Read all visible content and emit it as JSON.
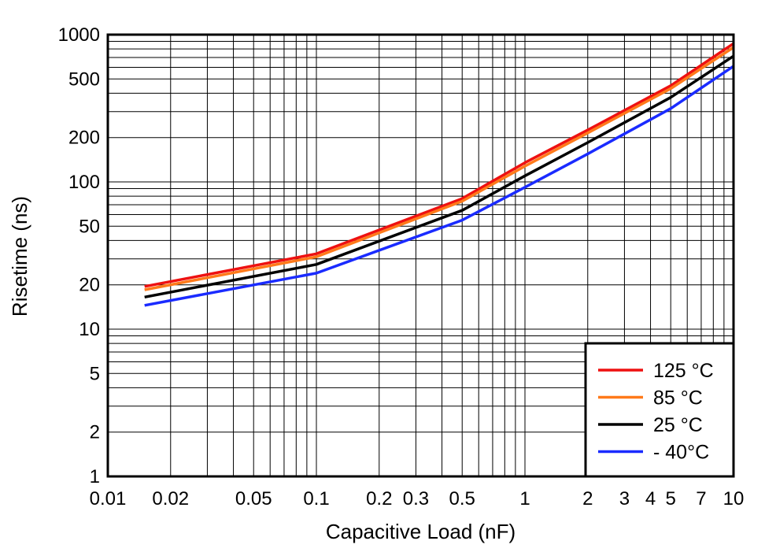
{
  "chart_data": {
    "type": "line",
    "xlabel": "Capacitive Load (nF)",
    "ylabel": "Risetime (ns)",
    "x_scale": "log",
    "y_scale": "log",
    "xlim": [
      0.01,
      10
    ],
    "ylim": [
      1,
      1000
    ],
    "grid": true,
    "legend_position": "bottom-right",
    "x_ticks": [
      {
        "value": 0.01,
        "label": "0.01"
      },
      {
        "value": 0.02,
        "label": "0.02"
      },
      {
        "value": 0.05,
        "label": "0.05"
      },
      {
        "value": 0.1,
        "label": "0.1"
      },
      {
        "value": 0.2,
        "label": "0.2"
      },
      {
        "value": 0.3,
        "label": "0.3"
      },
      {
        "value": 0.5,
        "label": "0.5"
      },
      {
        "value": 1,
        "label": "1"
      },
      {
        "value": 2,
        "label": "2"
      },
      {
        "value": 3,
        "label": "3"
      },
      {
        "value": 4,
        "label": "4"
      },
      {
        "value": 5,
        "label": "5"
      },
      {
        "value": 7,
        "label": "7"
      },
      {
        "value": 10,
        "label": "10"
      }
    ],
    "y_ticks": [
      {
        "value": 1,
        "label": "1"
      },
      {
        "value": 2,
        "label": "2"
      },
      {
        "value": 5,
        "label": "5"
      },
      {
        "value": 10,
        "label": "10"
      },
      {
        "value": 20,
        "label": "20"
      },
      {
        "value": 50,
        "label": "50"
      },
      {
        "value": 100,
        "label": "100"
      },
      {
        "value": 200,
        "label": "200"
      },
      {
        "value": 500,
        "label": "500"
      },
      {
        "value": 1000,
        "label": "1000"
      }
    ],
    "series": [
      {
        "name": "125 °C",
        "color": "#ee1111",
        "x": [
          0.015,
          0.1,
          0.5,
          1,
          2,
          5,
          10
        ],
        "y": [
          19.5,
          32.5,
          77,
          135,
          225,
          450,
          870
        ]
      },
      {
        "name": "85 °C",
        "color": "#ff7a1a",
        "x": [
          0.015,
          0.1,
          0.5,
          1,
          2,
          5,
          10
        ],
        "y": [
          18.5,
          31,
          74,
          128,
          215,
          430,
          820
        ]
      },
      {
        "name": "25 °C",
        "color": "#000000",
        "x": [
          0.015,
          0.1,
          0.5,
          1,
          2,
          5,
          10
        ],
        "y": [
          16.5,
          27.5,
          64,
          110,
          185,
          375,
          715
        ]
      },
      {
        "name": "- 40°C",
        "color": "#1a2bff",
        "x": [
          0.015,
          0.1,
          0.5,
          1,
          2,
          5,
          10
        ],
        "y": [
          14.5,
          24,
          55,
          92,
          155,
          315,
          610
        ]
      }
    ]
  }
}
